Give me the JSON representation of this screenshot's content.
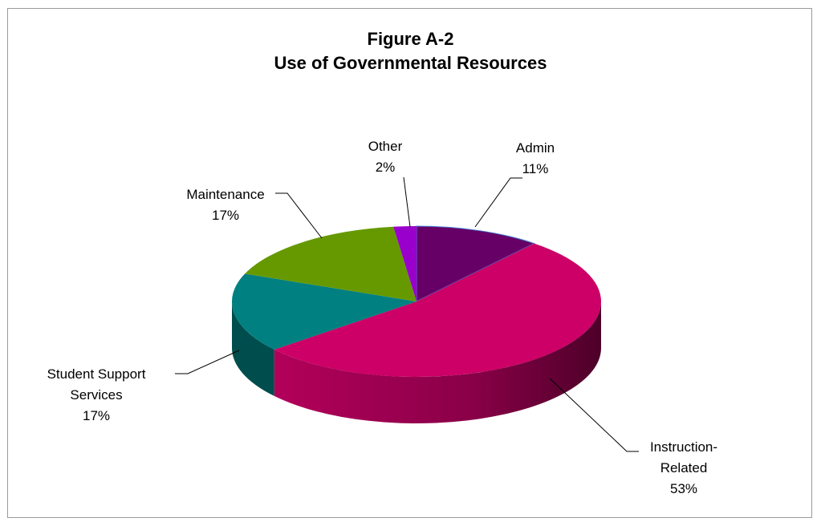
{
  "chart_data": {
    "type": "pie",
    "title": "Figure A-2",
    "subtitle": "Use of Governmental Resources",
    "slices": [
      {
        "name": "Admin",
        "label_lines": [
          "Admin",
          "11%"
        ],
        "value": 11,
        "color": "#660066",
        "side_color": "#3d003d"
      },
      {
        "name": "Instruction-Related",
        "label_lines": [
          "Instruction-",
          "Related",
          "53%"
        ],
        "value": 53,
        "color": "#cc0066",
        "side_color": "#7a0040"
      },
      {
        "name": "Student Support Services",
        "label_lines": [
          "Student Support",
          "Services",
          "17%"
        ],
        "value": 17,
        "color": "#008080",
        "side_color": "#004d4d"
      },
      {
        "name": "Maintenance",
        "label_lines": [
          "Maintenance",
          "17%"
        ],
        "value": 17,
        "color": "#669900",
        "side_color": "#3d5c00"
      },
      {
        "name": "Other",
        "label_lines": [
          "Other",
          "2%"
        ],
        "value": 2,
        "color": "#9900cc",
        "side_color": "#5c007a"
      }
    ],
    "legend": "none",
    "style": "3d-pie"
  }
}
